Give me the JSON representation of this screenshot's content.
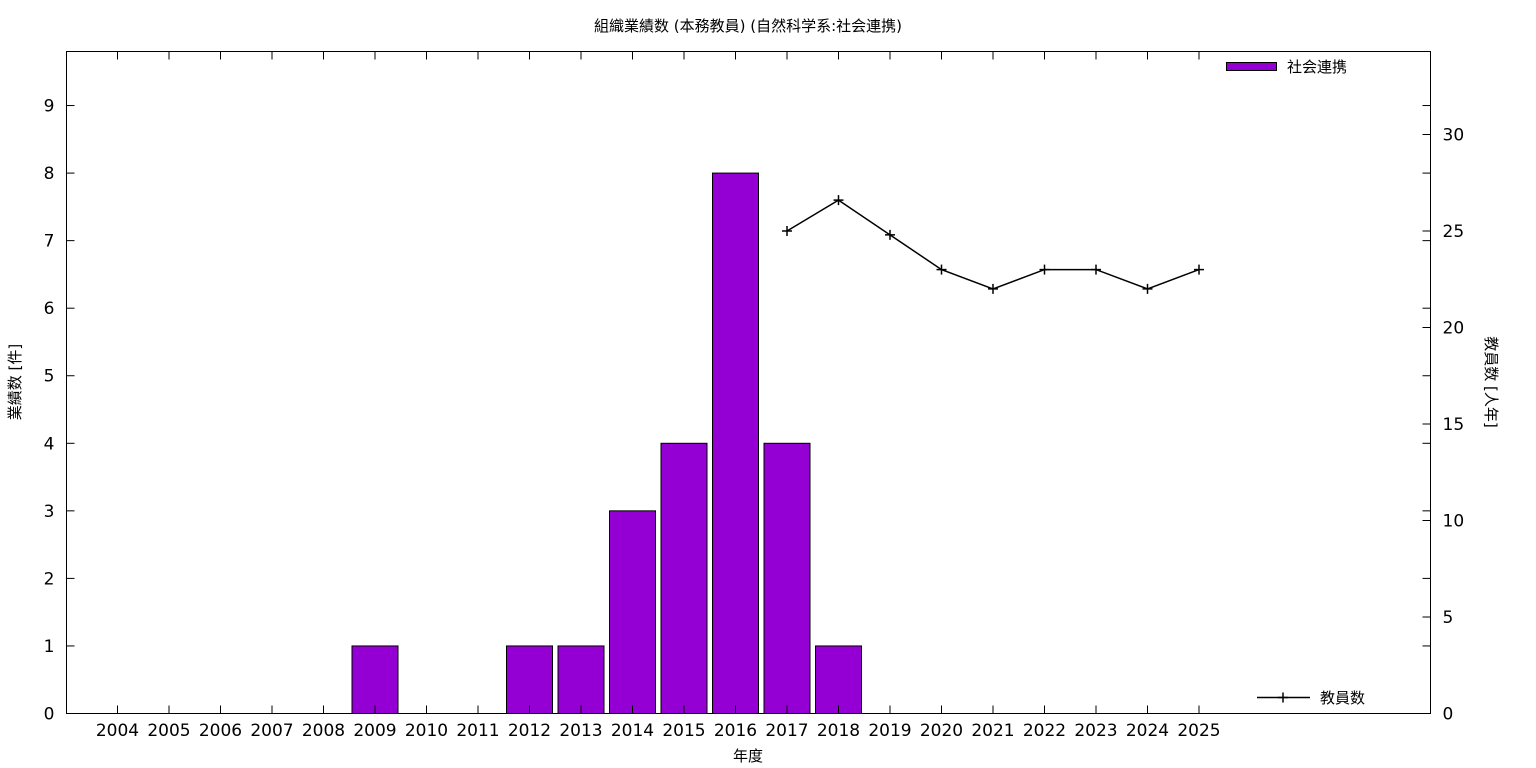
{
  "chart_data": {
    "type": "bar",
    "title": "組織業績数 (本務教員) (自然科学系:社会連携)",
    "xlabel": "年度",
    "ylabel": "業績数 [件]",
    "y2label": "教員数 [人年]",
    "categories": [
      "2004",
      "2005",
      "2006",
      "2007",
      "2008",
      "2009",
      "2010",
      "2011",
      "2012",
      "2013",
      "2014",
      "2015",
      "2016",
      "2017",
      "2018",
      "2019",
      "2020",
      "2021",
      "2022",
      "2023",
      "2024",
      "2025"
    ],
    "ylim": [
      0,
      9.8
    ],
    "yticks": [
      0,
      1,
      2,
      3,
      4,
      5,
      6,
      7,
      8,
      9
    ],
    "y2lim": [
      0,
      34.3
    ],
    "y2ticks": [
      0,
      5,
      10,
      15,
      20,
      25,
      30
    ],
    "grid": false,
    "series": [
      {
        "name": "社会連携",
        "type": "bar",
        "axis": "left",
        "color": "#9400d3",
        "values": [
          0,
          0,
          0,
          0,
          0,
          1,
          0,
          0,
          1,
          1,
          3,
          4,
          8,
          4,
          1,
          null,
          null,
          null,
          null,
          null,
          null,
          null
        ]
      },
      {
        "name": "教員数",
        "type": "line",
        "axis": "right",
        "color": "#000000",
        "marker": "plus",
        "values": [
          null,
          null,
          null,
          null,
          null,
          null,
          null,
          null,
          null,
          null,
          null,
          null,
          null,
          25,
          26.6,
          24.8,
          23,
          22,
          23,
          23,
          22,
          23
        ]
      }
    ],
    "legend": [
      {
        "label": "社会連携",
        "placement": "top-right"
      },
      {
        "label": "教員数",
        "placement": "bottom-right"
      }
    ]
  }
}
